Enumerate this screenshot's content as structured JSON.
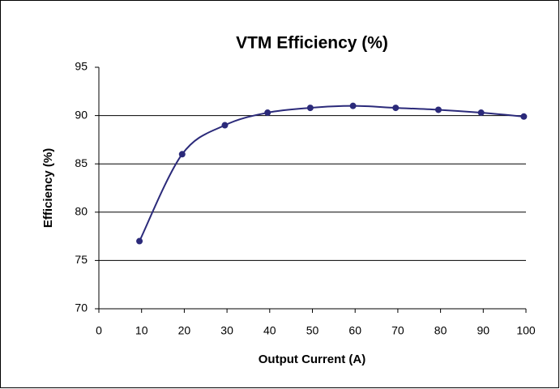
{
  "chart_data": {
    "type": "line",
    "title": "VTM Efficiency (%)",
    "x_label": "Output Current (A)",
    "y_label": "Efficiency (%)",
    "series": [
      {
        "name": "Efficiency",
        "color": "#2b2a7a",
        "x": [
          9.5,
          19.5,
          29.5,
          39.5,
          49.5,
          59.5,
          69.5,
          79.5,
          89.5,
          99.5
        ],
        "values": [
          77,
          86,
          89,
          90.3,
          90.8,
          91,
          90.8,
          90.6,
          90.3,
          89.9
        ]
      }
    ],
    "xlim": [
      0,
      100
    ],
    "xticks": [
      0,
      10,
      20,
      30,
      40,
      50,
      60,
      70,
      80,
      90,
      100
    ],
    "ylim": [
      70,
      95
    ],
    "yticks": [
      70,
      75,
      80,
      85,
      90,
      95
    ],
    "grid": true
  }
}
